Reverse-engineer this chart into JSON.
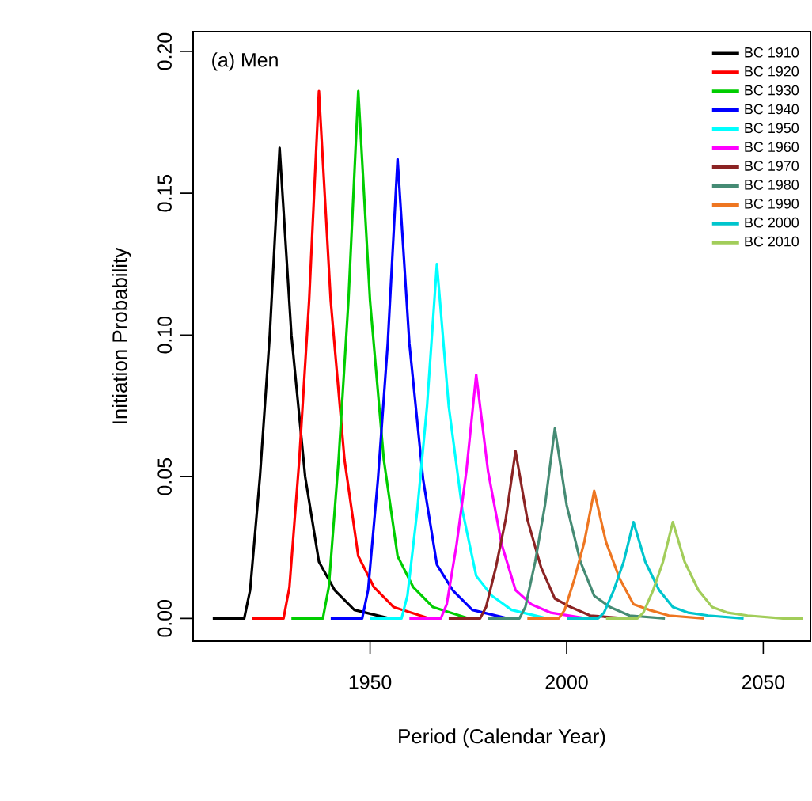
{
  "chart_data": {
    "type": "line",
    "xlabel": "Period (Calendar Year)",
    "ylabel": "Initiation Probability",
    "annotations": [
      "(a) Men"
    ],
    "xlim": [
      1905,
      2062
    ],
    "xticks": [
      1950,
      2000,
      2050
    ],
    "ylim": [
      -0.008,
      0.207
    ],
    "yticks": [
      {
        "value": 0,
        "label": "0.00"
      },
      {
        "value": 0.05,
        "label": "0.05"
      },
      {
        "value": 0.1,
        "label": "0.10"
      },
      {
        "value": 0.15,
        "label": "0.15"
      },
      {
        "value": 0.2,
        "label": "0.20"
      }
    ],
    "legend": "top right",
    "series": [
      {
        "name": "BC 1910",
        "color": "#000000",
        "x": [
          1910,
          1918,
          1919.5,
          1922,
          1924.5,
          1927,
          1930,
          1933.5,
          1937,
          1941,
          1946,
          1955
        ],
        "values": [
          0,
          0,
          0.01,
          0.05,
          0.1,
          0.166,
          0.1,
          0.05,
          0.02,
          0.01,
          0.003,
          0
        ]
      },
      {
        "name": "BC 1920",
        "color": "#ff0000",
        "x": [
          1920,
          1928,
          1929.5,
          1932,
          1934.5,
          1937,
          1940,
          1943.5,
          1947,
          1951,
          1956,
          1965
        ],
        "values": [
          0,
          0,
          0.011,
          0.056,
          0.112,
          0.186,
          0.112,
          0.056,
          0.022,
          0.011,
          0.004,
          0
        ]
      },
      {
        "name": "BC 1930",
        "color": "#00cd00",
        "x": [
          1930,
          1938,
          1939.5,
          1942,
          1944.5,
          1947,
          1950,
          1953.5,
          1957,
          1961,
          1966,
          1975
        ],
        "values": [
          0,
          0,
          0.011,
          0.056,
          0.112,
          0.186,
          0.112,
          0.056,
          0.022,
          0.011,
          0.004,
          0
        ]
      },
      {
        "name": "BC 1940",
        "color": "#0000ff",
        "x": [
          1940,
          1948,
          1949.5,
          1952,
          1954.5,
          1957,
          1960,
          1963.5,
          1967,
          1971,
          1976,
          1985
        ],
        "values": [
          0,
          0,
          0.01,
          0.049,
          0.097,
          0.162,
          0.097,
          0.049,
          0.019,
          0.01,
          0.003,
          0
        ]
      },
      {
        "name": "BC 1950",
        "color": "#00ffff",
        "x": [
          1950,
          1958,
          1959.5,
          1962,
          1964.5,
          1967,
          1970,
          1973.5,
          1977,
          1981,
          1986,
          1995
        ],
        "values": [
          0,
          0,
          0.008,
          0.038,
          0.075,
          0.125,
          0.075,
          0.038,
          0.015,
          0.008,
          0.003,
          0
        ]
      },
      {
        "name": "BC 1960",
        "color": "#ff00ff",
        "x": [
          1960,
          1968,
          1969.5,
          1972,
          1974.5,
          1977,
          1980,
          1983.5,
          1987,
          1991,
          1996,
          2005
        ],
        "values": [
          0,
          0,
          0.005,
          0.026,
          0.052,
          0.086,
          0.052,
          0.026,
          0.01,
          0.005,
          0.002,
          0
        ]
      },
      {
        "name": "BC 1970",
        "color": "#8b2323",
        "x": [
          1970,
          1978,
          1979.5,
          1982,
          1984.5,
          1987,
          1990,
          1993.5,
          1997,
          2001,
          2006,
          2015
        ],
        "values": [
          0,
          0,
          0.004,
          0.018,
          0.035,
          0.059,
          0.035,
          0.018,
          0.007,
          0.004,
          0.001,
          0
        ]
      },
      {
        "name": "BC 1980",
        "color": "#458b74",
        "x": [
          1980,
          1988,
          1989.5,
          1992,
          1994.5,
          1997,
          2000,
          2003.5,
          2007,
          2011,
          2016,
          2025
        ],
        "values": [
          0,
          0,
          0.004,
          0.02,
          0.04,
          0.067,
          0.04,
          0.02,
          0.008,
          0.004,
          0.001,
          0
        ]
      },
      {
        "name": "BC 1990",
        "color": "#ee7621",
        "x": [
          1990,
          1998,
          1999.5,
          2002,
          2004.5,
          2007,
          2010,
          2013.5,
          2017,
          2021,
          2026,
          2035
        ],
        "values": [
          0,
          0,
          0.003,
          0.014,
          0.027,
          0.045,
          0.027,
          0.014,
          0.005,
          0.003,
          0.001,
          0
        ]
      },
      {
        "name": "BC 2000",
        "color": "#00c5cd",
        "x": [
          2000,
          2008,
          2009.5,
          2012,
          2014.5,
          2017,
          2020,
          2023.5,
          2027,
          2031,
          2036,
          2045
        ],
        "values": [
          0,
          0,
          0.002,
          0.01,
          0.02,
          0.034,
          0.02,
          0.01,
          0.004,
          0.002,
          0.001,
          0
        ]
      },
      {
        "name": "BC 2010",
        "color": "#a2cd5a",
        "x": [
          2010,
          2018,
          2019.5,
          2022,
          2024.5,
          2027,
          2030,
          2033.5,
          2037,
          2041,
          2046,
          2055,
          2060
        ],
        "values": [
          0,
          0,
          0.002,
          0.01,
          0.02,
          0.034,
          0.02,
          0.01,
          0.004,
          0.002,
          0.001,
          0,
          0
        ]
      }
    ]
  }
}
